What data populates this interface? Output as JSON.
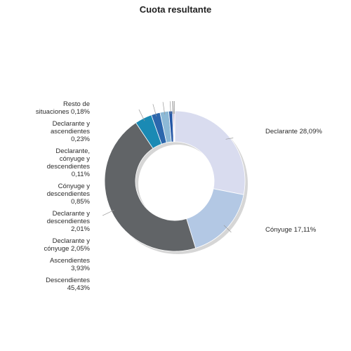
{
  "chart_data": {
    "type": "pie",
    "title": "Cuota resultante",
    "series": [
      {
        "name": "Declarante",
        "value": 28.09,
        "label": [
          "Declarante 28,09%"
        ],
        "color": "#d9dcef",
        "side": "right"
      },
      {
        "name": "Cónyuge",
        "value": 17.11,
        "label": [
          "Cónyuge 17,11%"
        ],
        "color": "#b3c8e4",
        "side": "right"
      },
      {
        "name": "Descendientes",
        "value": 45.43,
        "label": [
          "Descendientes",
          "45,43%"
        ],
        "color": "#616467",
        "side": "left"
      },
      {
        "name": "Ascendientes",
        "value": 3.93,
        "label": [
          "Ascendientes",
          "3,93%"
        ],
        "color": "#1a8ab4",
        "side": "left"
      },
      {
        "name": "Declarante y cónyuge",
        "value": 2.05,
        "label": [
          "Declarante y",
          "cónyuge 2,05%"
        ],
        "color": "#2c67ad",
        "side": "left"
      },
      {
        "name": "Declarante y descendientes",
        "value": 2.01,
        "label": [
          "Declarante y",
          "descendientes",
          "2,01%"
        ],
        "color": "#8db9d6",
        "side": "left"
      },
      {
        "name": "Cónyuge y descendientes",
        "value": 0.85,
        "label": [
          "Cónyuge y",
          "descendientes",
          "0,85%"
        ],
        "color": "#2457a6",
        "side": "left"
      },
      {
        "name": "Declarante, cónyuge y descendientes",
        "value": 0.11,
        "label": [
          "Declarante,",
          "cónyuge y",
          "descendientes",
          "0,11%"
        ],
        "color": "#5a6fa8",
        "side": "left"
      },
      {
        "name": "Declarante y ascendientes",
        "value": 0.23,
        "label": [
          "Declarante y",
          "ascendientes",
          "0,23%"
        ],
        "color": "#7a4f9a",
        "side": "left"
      },
      {
        "name": "Resto de situaciones",
        "value": 0.18,
        "label": [
          "Resto de",
          "situaciones 0,18%"
        ],
        "color": "#b5b5b5",
        "side": "left"
      }
    ]
  }
}
